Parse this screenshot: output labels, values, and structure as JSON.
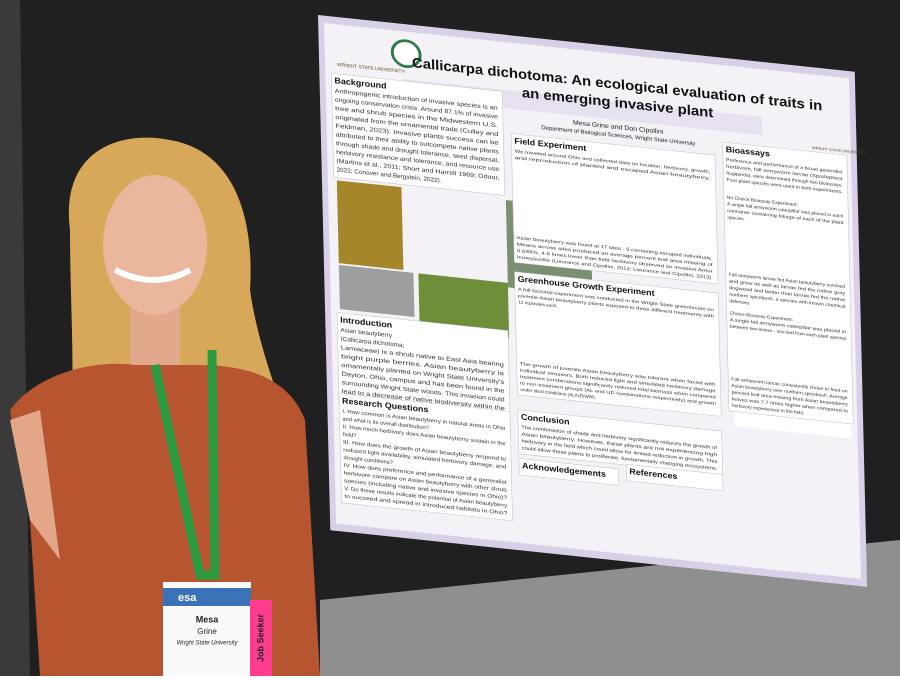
{
  "poster": {
    "logo_left": "WRIGHT STATE UNIVERSITY",
    "logo_right": "WestRock",
    "logo_right_2": "WRIGHT STATE UNIVERSITY",
    "title_lines": [
      "Callicarpa dichotoma: An ecological evaluation of traits in",
      "an emerging invasive plant"
    ],
    "authors": "Mesa Grine and Don Cipollini",
    "department": "Department of Biological Sciences, Wright State University",
    "map_label": "Wright State University",
    "sections": [
      {
        "heading": "Background",
        "lines": [
          "Anthropogenic introduction of invasive species is an",
          "ongoing conservation crisis. Around 87.1% of invasive",
          "tree and shrub species in the Midwestern U.S.",
          "originated from the ornamental trade (Culley and",
          "Feldman, 2023). Invasive plants success can be",
          "attributed to their ability to outcompete native plants",
          "through shade and drought tolerance, seed dispersal,",
          "herbivory resistance and tolerance, and resource use",
          "(Martins et al., 2011; Short and Harrell 1969; Oduor,",
          "2022; Conover and Bergstein, 2022)."
        ]
      },
      {
        "heading": "Introduction",
        "lines": [
          "Asian beautyberry",
          "(Callicarpa dichotoma;",
          "Lamiaceae) is a shrub native to East Asia bearing",
          "bright purple berries. Asian beautyberry is",
          "ornamentally planted on Wright State University's",
          "Dayton, Ohio, campus and has been found in the",
          "surrounding Wright State woods. This invasion could",
          "lead to a decrease of native biodiversity within the",
          "Wright State woods."
        ]
      },
      {
        "heading": "Research Questions",
        "lines": [
          "I. How common is Asian beautyberry in natural areas in Ohio",
          "and what is its overall distribution?",
          "II. How much herbivory does Asian beautyberry sustain in the",
          "field?",
          "III. How does the growth of Asian beautyberry respond to",
          "reduced light availability, simulated herbivory damage, and",
          "drought conditions?",
          "IV. How does preference and performance of a generalist",
          "herbivore compare on Asian beautyberry with other shrub",
          "species (including native and invasive species in Ohio)?",
          "V. Do these results indicate the potential of Asian beautyberry",
          "to succeed and spread in introduced habitats in Ohio?"
        ]
      },
      {
        "heading": "Field Experiment",
        "lines": [
          "We traveled around Ohio and collected data on location, herbivory, growth,",
          "and reproduction of planted and escaped Asian beautyberry.",
          "Asian beautyberry was found at 17 sites - 5 containing escaped individuals.",
          "Means across sites produced an average percent leaf area missing of",
          "0.649%, 4.6 times lower than field herbivory observed on invasive Amur",
          "honeysuckle (Lieurance and Cipollini, 2012; Lieurance and Cipollini, 2013)."
        ]
      },
      {
        "heading": "Greenhouse Growth Experiment",
        "lines": [
          "A full factorial experiment was conducted in the Wright State greenhouse on",
          "juvenile Asian beautyberry plants exposed to three different treatments with",
          "12 replicates each.",
          "The growth of juvenile Asian beautyberry was tolerant when faced with",
          "individual stressors. Both reduced light and simulated herbivory damage",
          "treatment combinations significantly reduced total biomass when compared",
          "to non-treatment groups (AL and UD combinations respectively) and growth",
          "under ideal conditions (AL/UD/WW)."
        ]
      },
      {
        "heading": "Conclusion",
        "lines": [
          "The combination of shade and herbivory significantly reduces the growth of",
          "Asian beautyberry. However, these plants are not experiencing high",
          "herbivory in the field which could allow for limited reduction in growth. This",
          "could allow these plants to proliferate, fundamentally changing ecosystems."
        ]
      },
      {
        "heading": "Acknowledgements",
        "lines": []
      },
      {
        "heading": "References",
        "lines": []
      },
      {
        "heading": "Bioassays",
        "lines": [
          "Preference and performance of a broad generalist",
          "herbivore, fall armyworm larvae (Spodoptera",
          "frugiperda), were determined through two bioassays.",
          "Four plant species were used in both experiments.",
          "No Choice Bioassay Experiment:",
          "A single fall armyworm caterpillar was placed in each",
          "container containing foliage of each of the plant",
          "species.",
          "Fall armyworm larvae fed Asian beautyberry survived",
          "and grew as well as larvae fed the native gray",
          "dogwood and better than larvae fed the native",
          "northern spicebush, a species with known chemical",
          "defenses.",
          "Choice Bioassay Experiment:",
          "A single fall armyworm caterpillar was placed in",
          "between two leaves - one leaf from each plant species",
          "Fall armyworm larvae consistently chose to feed on",
          "Asian beautyberry over northern spicebush. Average",
          "percent leaf area missing from Asian beautyberry",
          "leaves was 7.7 times higher when compared to",
          "herbivory experienced in the field."
        ]
      }
    ]
  },
  "badge": {
    "org": "esa",
    "first_name": "Mesa",
    "last_name": "Grine",
    "affiliation": "Wright State University",
    "tag": "Job Seeker"
  }
}
